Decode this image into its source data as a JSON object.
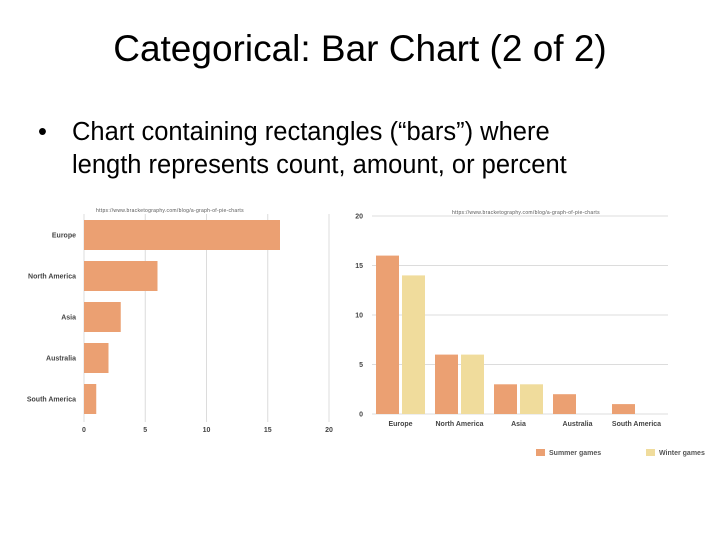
{
  "slide": {
    "title": "Categorical: Bar Chart (2 of 2)",
    "bullet_symbol": "•",
    "bullet_line1": "Chart containing rectangles (“bars”) where",
    "bullet_line2": "length represents count, amount, or percent"
  },
  "colors": {
    "summer": "#EBA072",
    "winter": "#F0DC9C",
    "grid": "#DCDCDC",
    "axis_text": "#444444"
  },
  "chart_data": [
    {
      "type": "bar",
      "orientation": "horizontal",
      "source_text": "https://www.bracketography.com/blog/a-graph-of-pie-charts",
      "categories": [
        "Europe",
        "North America",
        "Asia",
        "Australia",
        "South America"
      ],
      "values": [
        16,
        6,
        3,
        2,
        1
      ],
      "xlim": [
        0,
        20
      ],
      "xticks": [
        "0",
        "5",
        "10",
        "15",
        "20"
      ],
      "grid": true
    },
    {
      "type": "bar",
      "orientation": "vertical",
      "source_text": "https://www.bracketography.com/blog/a-graph-of-pie-charts",
      "categories": [
        "Europe",
        "North America",
        "Asia",
        "Australia",
        "South America"
      ],
      "series": [
        {
          "name": "Summer games",
          "values": [
            16,
            6,
            3,
            2,
            1
          ]
        },
        {
          "name": "Winter games",
          "values": [
            14,
            6,
            3,
            0,
            0
          ]
        }
      ],
      "ylim": [
        0,
        20
      ],
      "yticks": [
        "0",
        "5",
        "10",
        "15",
        "20"
      ],
      "grid": true,
      "legend_position": "bottom-right"
    }
  ]
}
